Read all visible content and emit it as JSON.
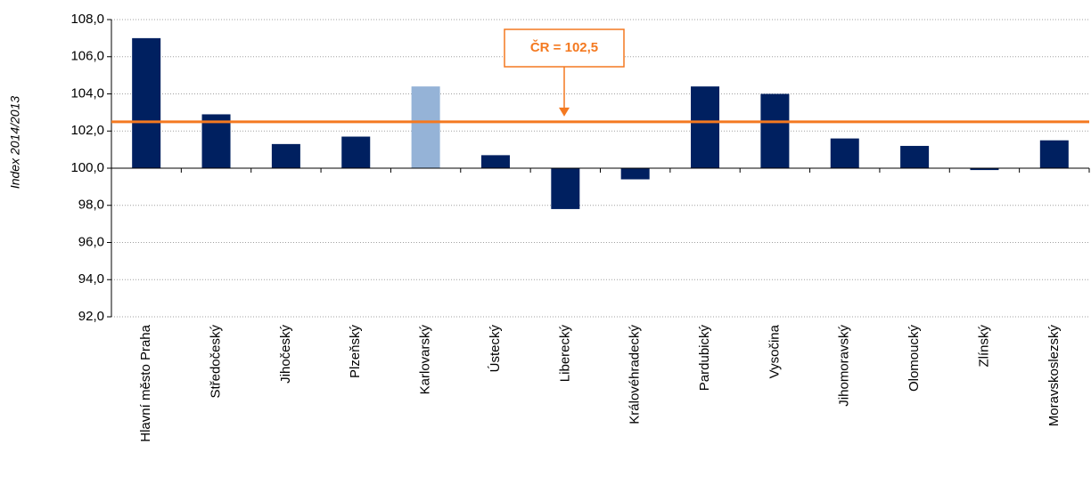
{
  "chart_data": {
    "type": "bar",
    "y_label": "Index 2014/2013",
    "categories": [
      "Hlavní město Praha",
      "Středočeský",
      "Jihočeský",
      "Plzeňský",
      "Karlovarský",
      "Ústecký",
      "Liberecký",
      "Královéhradecký",
      "Pardubický",
      "Vysočina",
      "Jihomoravský",
      "Olomoucký",
      "Zlínský",
      "Moravskoslezský"
    ],
    "values": [
      107.0,
      102.9,
      101.3,
      101.7,
      104.4,
      100.7,
      97.8,
      99.4,
      104.4,
      104.0,
      101.6,
      101.2,
      99.9,
      101.5
    ],
    "colors": [
      "#002060",
      "#002060",
      "#002060",
      "#002060",
      "#95b3d7",
      "#002060",
      "#002060",
      "#002060",
      "#002060",
      "#002060",
      "#002060",
      "#002060",
      "#002060",
      "#002060"
    ],
    "baseline": 100,
    "reference": {
      "value": 102.5,
      "label": "ČR = 102,5",
      "color": "#f47920"
    },
    "ylim": [
      92,
      108
    ],
    "yticks": [
      {
        "value": 92,
        "label": "92,0"
      },
      {
        "value": 94,
        "label": "94,0"
      },
      {
        "value": 96,
        "label": "96,0"
      },
      {
        "value": 98,
        "label": "98,0"
      },
      {
        "value": 100,
        "label": "100,0"
      },
      {
        "value": 102,
        "label": "102,0"
      },
      {
        "value": 104,
        "label": "104,0"
      },
      {
        "value": 106,
        "label": "106,0"
      },
      {
        "value": 108,
        "label": "108,0"
      }
    ],
    "grid": true
  }
}
